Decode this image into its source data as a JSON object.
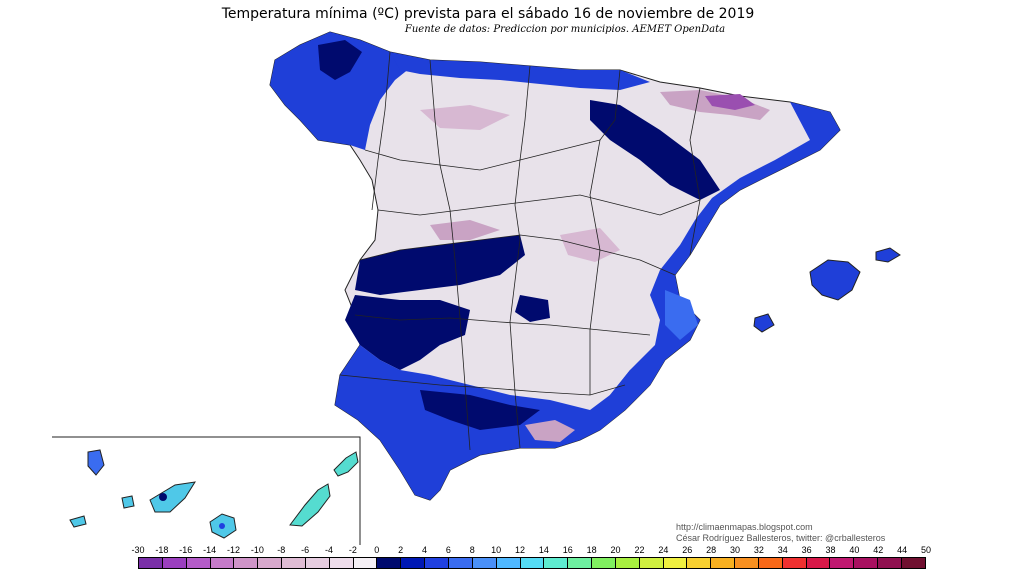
{
  "header": {
    "title": "Temperatura mínima (ºC) prevista para el sábado 16 de noviembre de 2019",
    "source": "Fuente de datos: Prediccion por municipios. AEMET OpenData"
  },
  "credits": {
    "blog": "http://climaenmapas.blogspot.com",
    "author": "César Rodríguez Ballesteros, twitter: @crballesteros"
  },
  "legend": {
    "labels": [
      "-30",
      "-18",
      "-16",
      "-14",
      "-12",
      "-10",
      "-8",
      "-6",
      "-4",
      "-2",
      "0",
      "2",
      "4",
      "6",
      "8",
      "10",
      "12",
      "14",
      "16",
      "18",
      "20",
      "22",
      "24",
      "26",
      "28",
      "30",
      "32",
      "34",
      "36",
      "38",
      "40",
      "42",
      "44",
      "50"
    ],
    "colors": [
      "#7a2fa8",
      "#9b3fbf",
      "#b45cc8",
      "#c57bc9",
      "#cf94c8",
      "#d7a8cc",
      "#dfbcd4",
      "#e6cde0",
      "#eeddeb",
      "#f5f0f5",
      "#000a6e",
      "#0018b4",
      "#2040e0",
      "#3a6cf0",
      "#4a90f8",
      "#4fb8ff",
      "#55dcf5",
      "#5eecd0",
      "#6ef0a0",
      "#80f060",
      "#a8f040",
      "#d0f040",
      "#f0f040",
      "#f8d030",
      "#f8b020",
      "#f89020",
      "#f86818",
      "#f03030",
      "#d81848",
      "#c01870",
      "#a81060",
      "#901050",
      "#701030"
    ]
  },
  "map": {
    "regions": [
      "peninsula-iberica",
      "islas-baleares",
      "islas-canarias"
    ],
    "colors": {
      "cold_dominant": "#e8e2ea",
      "cold_mauve": "#c9a3c4",
      "cold_purple": "#9a4fb0",
      "warm_dark": "#000a6e",
      "warm_blue": "#1f3fd8",
      "warm_light": "#3a6cf0",
      "warm_cyan": "#4fc8e8",
      "border": "#222222"
    }
  }
}
